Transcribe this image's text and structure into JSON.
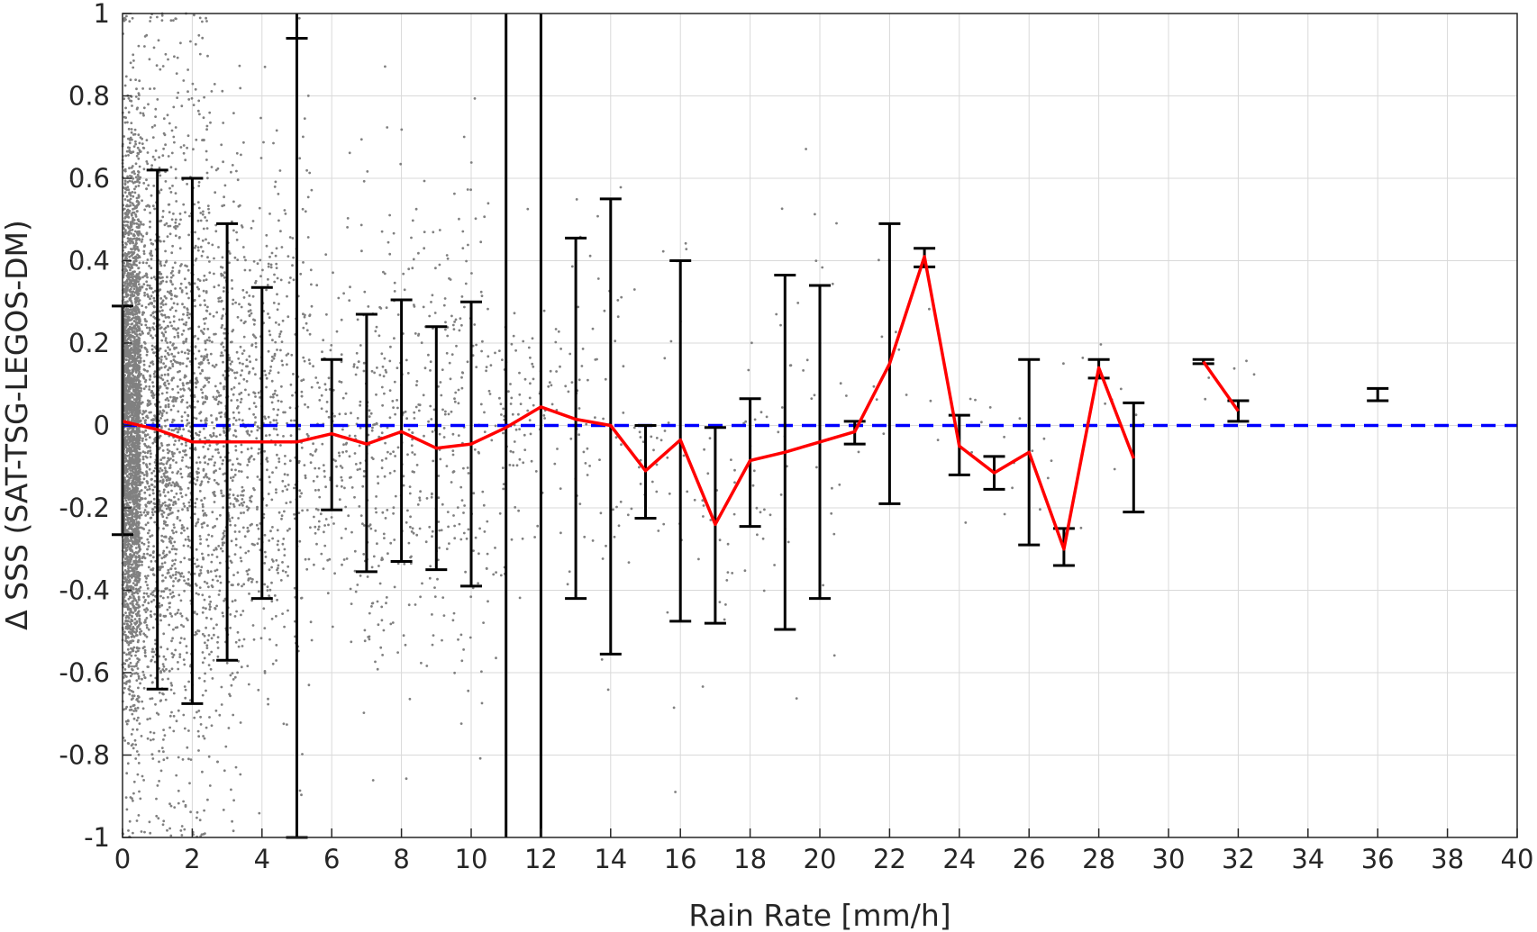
{
  "chart_data": {
    "type": "scatter",
    "xlabel": "Rain Rate [mm/h]",
    "ylabel": "Δ SSS (SAT-TSG-LEGOS-DM)",
    "xlim": [
      0,
      40
    ],
    "ylim": [
      -1,
      1
    ],
    "x_ticks": [
      0,
      2,
      4,
      6,
      8,
      10,
      12,
      14,
      16,
      18,
      20,
      22,
      24,
      26,
      28,
      30,
      32,
      34,
      36,
      38,
      40
    ],
    "y_ticks": [
      -1,
      -0.8,
      -0.6,
      -0.4,
      -0.2,
      0,
      0.2,
      0.4,
      0.6,
      0.8,
      1
    ],
    "y_tick_labels": [
      "-1",
      "-0.8",
      "-0.6",
      "-0.4",
      "-0.2",
      "0",
      "0.2",
      "0.4",
      "0.6",
      "0.8",
      "1"
    ],
    "grid": true,
    "legend": "none",
    "colors": {
      "scatter": "#808080",
      "mean_line": "#ff0000",
      "reference_line": "#0000ff",
      "error_bars": "#000000"
    },
    "zero_reference_line": {
      "y": 0,
      "style": "dashed"
    },
    "vertical_lines": [
      5,
      11,
      12
    ],
    "mean_segments": [
      {
        "x": [
          0,
          1,
          2,
          3,
          4,
          5,
          6,
          7,
          8,
          9,
          10,
          11,
          12,
          13,
          14,
          15,
          16,
          17,
          18,
          19,
          20,
          21,
          22,
          23,
          24,
          25,
          26,
          27,
          28,
          29
        ],
        "y": [
          0.01,
          -0.01,
          -0.04,
          -0.04,
          -0.04,
          -0.04,
          -0.02,
          -0.045,
          -0.015,
          -0.055,
          -0.045,
          -0.005,
          0.045,
          0.015,
          0.0,
          -0.11,
          -0.035,
          -0.24,
          -0.085,
          -0.065,
          -0.04,
          -0.015,
          0.15,
          0.41,
          -0.05,
          -0.115,
          -0.065,
          -0.3,
          0.14,
          -0.08
        ]
      },
      {
        "x": [
          31,
          32
        ],
        "y": [
          0.155,
          0.035
        ]
      },
      {
        "x": [
          36
        ],
        "y": [
          0.075
        ]
      }
    ],
    "error_bars": [
      {
        "x": 0,
        "low": -0.265,
        "high": 0.29
      },
      {
        "x": 1,
        "low": -0.64,
        "high": 0.62
      },
      {
        "x": 2,
        "low": -0.675,
        "high": 0.6
      },
      {
        "x": 3,
        "low": -0.57,
        "high": 0.49
      },
      {
        "x": 4,
        "low": -0.42,
        "high": 0.335
      },
      {
        "x": 5,
        "low": -1.0,
        "high": 0.94
      },
      {
        "x": 6,
        "low": -0.205,
        "high": 0.16
      },
      {
        "x": 7,
        "low": -0.355,
        "high": 0.27
      },
      {
        "x": 8,
        "low": -0.33,
        "high": 0.305
      },
      {
        "x": 9,
        "low": -0.35,
        "high": 0.24
      },
      {
        "x": 10,
        "low": -0.39,
        "high": 0.3
      },
      {
        "x": 13,
        "low": -0.42,
        "high": 0.455
      },
      {
        "x": 14,
        "low": -0.555,
        "high": 0.55
      },
      {
        "x": 15,
        "low": -0.225,
        "high": 0.0
      },
      {
        "x": 16,
        "low": -0.475,
        "high": 0.4
      },
      {
        "x": 17,
        "low": -0.48,
        "high": -0.005
      },
      {
        "x": 18,
        "low": -0.245,
        "high": 0.065
      },
      {
        "x": 19,
        "low": -0.495,
        "high": 0.365
      },
      {
        "x": 20,
        "low": -0.42,
        "high": 0.34
      },
      {
        "x": 21,
        "low": -0.045,
        "high": 0.01
      },
      {
        "x": 22,
        "low": -0.19,
        "high": 0.49
      },
      {
        "x": 23,
        "low": 0.385,
        "high": 0.43
      },
      {
        "x": 24,
        "low": -0.12,
        "high": 0.025
      },
      {
        "x": 25,
        "low": -0.155,
        "high": -0.075
      },
      {
        "x": 26,
        "low": -0.29,
        "high": 0.16
      },
      {
        "x": 27,
        "low": -0.34,
        "high": -0.25
      },
      {
        "x": 28,
        "low": 0.115,
        "high": 0.16
      },
      {
        "x": 29,
        "low": -0.21,
        "high": 0.055
      },
      {
        "x": 31,
        "low": 0.15,
        "high": 0.16
      },
      {
        "x": 32,
        "low": 0.01,
        "high": 0.06
      },
      {
        "x": 36,
        "low": 0.06,
        "high": 0.09
      }
    ],
    "scatter_density": [
      {
        "x": [
          0,
          0.5
        ],
        "count": 3000,
        "sd": 0.32,
        "mean": 0.0
      },
      {
        "x": [
          0.5,
          1.5
        ],
        "count": 1100,
        "sd": 0.4,
        "mean": -0.01
      },
      {
        "x": [
          1.5,
          2.5
        ],
        "count": 700,
        "sd": 0.42,
        "mean": -0.04
      },
      {
        "x": [
          2.5,
          3.5
        ],
        "count": 450,
        "sd": 0.36,
        "mean": -0.04
      },
      {
        "x": [
          3.5,
          4.5
        ],
        "count": 300,
        "sd": 0.3,
        "mean": -0.04
      },
      {
        "x": [
          4.5,
          5.5
        ],
        "count": 180,
        "sd": 0.35,
        "mean": -0.04
      },
      {
        "x": [
          5.5,
          6.5
        ],
        "count": 110,
        "sd": 0.2,
        "mean": -0.02
      },
      {
        "x": [
          6.5,
          7.5
        ],
        "count": 150,
        "sd": 0.3,
        "mean": -0.05
      },
      {
        "x": [
          7.5,
          8.5
        ],
        "count": 130,
        "sd": 0.3,
        "mean": -0.02
      },
      {
        "x": [
          8.5,
          9.5
        ],
        "count": 110,
        "sd": 0.28,
        "mean": -0.05
      },
      {
        "x": [
          9.5,
          10.5
        ],
        "count": 110,
        "sd": 0.3,
        "mean": -0.05
      },
      {
        "x": [
          10.5,
          11.5
        ],
        "count": 60,
        "sd": 0.2,
        "mean": 0.0
      },
      {
        "x": [
          11.5,
          12.5
        ],
        "count": 40,
        "sd": 0.15,
        "mean": 0.03
      },
      {
        "x": [
          12.5,
          13.5
        ],
        "count": 40,
        "sd": 0.25,
        "mean": 0.02
      },
      {
        "x": [
          13.5,
          14.5
        ],
        "count": 30,
        "sd": 0.3,
        "mean": 0.0
      },
      {
        "x": [
          14.5,
          15.5
        ],
        "count": 20,
        "sd": 0.12,
        "mean": -0.1
      },
      {
        "x": [
          15.5,
          16.5
        ],
        "count": 20,
        "sd": 0.25,
        "mean": -0.04
      },
      {
        "x": [
          16.5,
          17.5
        ],
        "count": 20,
        "sd": 0.25,
        "mean": -0.22
      },
      {
        "x": [
          17.5,
          18.5
        ],
        "count": 20,
        "sd": 0.15,
        "mean": -0.09
      },
      {
        "x": [
          18.5,
          19.5
        ],
        "count": 16,
        "sd": 0.3,
        "mean": -0.07
      },
      {
        "x": [
          19.5,
          20.5
        ],
        "count": 16,
        "sd": 0.3,
        "mean": -0.05
      },
      {
        "x": [
          20.5,
          23.5
        ],
        "count": 16,
        "sd": 0.15,
        "mean": 0.05
      },
      {
        "x": [
          23.5,
          26.5
        ],
        "count": 14,
        "sd": 0.12,
        "mean": -0.08
      },
      {
        "x": [
          26.5,
          29.5
        ],
        "count": 12,
        "sd": 0.15,
        "mean": -0.05
      },
      {
        "x": [
          30.5,
          32.5
        ],
        "count": 6,
        "sd": 0.05,
        "mean": 0.08
      }
    ]
  }
}
